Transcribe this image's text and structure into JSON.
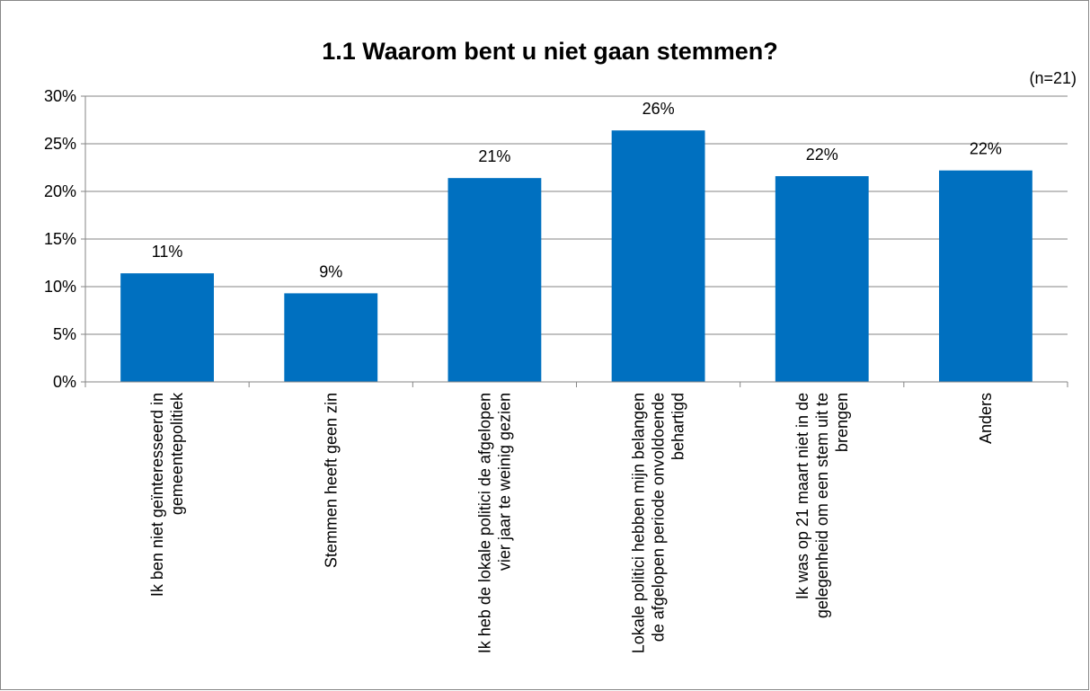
{
  "chart_data": {
    "type": "bar",
    "title": "1.1 Waarom bent u niet gaan stemmen?",
    "subtitle": "(n=21)",
    "categories": [
      "Ik ben niet geïnteresseerd in gemeentepolitiek",
      "Stemmen heeft geen zin",
      "Ik heb de lokale politici de afgelopen vier jaar te weinig gezien",
      "Lokale politici hebben mijn belangen de afgelopen periode onvoldoende behartigd",
      "Ik was op 21 maart niet in de gelegenheid om een stem uit te brengen",
      "Anders"
    ],
    "values": [
      11.4,
      9.3,
      21.4,
      26.4,
      21.6,
      22.2
    ],
    "value_labels": [
      "11%",
      "9%",
      "21%",
      "26%",
      "22%",
      "22%"
    ],
    "color": "#0070c0",
    "ylim": [
      0,
      30
    ],
    "yticks": [
      {
        "value": 0,
        "label": "0%"
      },
      {
        "value": 5,
        "label": "5%"
      },
      {
        "value": 10,
        "label": "10%"
      },
      {
        "value": 15,
        "label": "15%"
      },
      {
        "value": 20,
        "label": "20%"
      },
      {
        "value": 25,
        "label": "25%"
      },
      {
        "value": 30,
        "label": "30%"
      }
    ],
    "grid": true
  }
}
